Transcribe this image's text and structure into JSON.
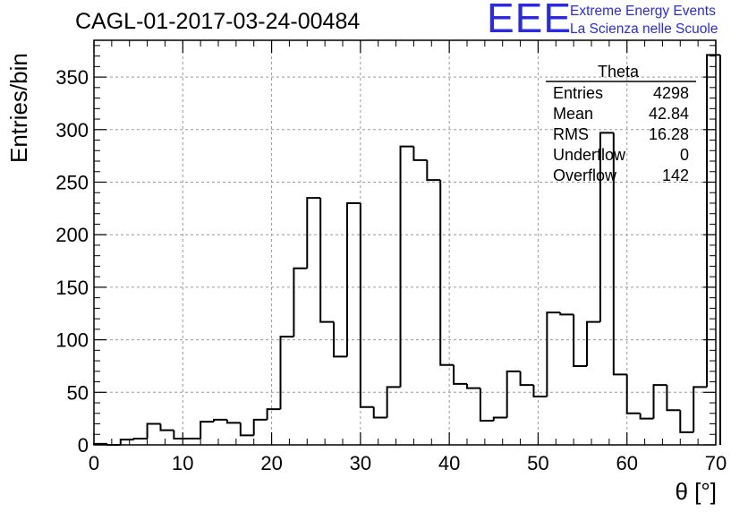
{
  "title": "CAGL-01-2017-03-24-00484",
  "logo": {
    "letters": "EEE",
    "line1": "Extreme Energy Events",
    "line2": "La Scienza nelle Scuole",
    "color": "#2b2bdc"
  },
  "stats": {
    "title": "Theta",
    "rows": [
      {
        "label": "Entries",
        "value": "4298"
      },
      {
        "label": "Mean",
        "value": "42.84"
      },
      {
        "label": "RMS",
        "value": "16.28"
      },
      {
        "label": "Underflow",
        "value": "0"
      },
      {
        "label": "Overflow",
        "value": "142"
      }
    ]
  },
  "chart_data": {
    "type": "bar",
    "style": "step-histogram",
    "xlabel": "θ [°]",
    "ylabel": "Entries/bin",
    "xlim": [
      0,
      70
    ],
    "ylim": [
      0,
      385
    ],
    "bin_width": 1.5,
    "x_ticks": [
      0,
      10,
      20,
      30,
      40,
      50,
      60,
      70
    ],
    "y_ticks": [
      0,
      50,
      100,
      150,
      200,
      250,
      300,
      350
    ],
    "grid": true,
    "line_color": "#000000",
    "values": [
      1,
      0,
      5,
      6,
      20,
      14,
      6,
      6,
      22,
      24,
      21,
      9,
      24,
      34,
      103,
      168,
      235,
      117,
      84,
      230,
      36,
      26,
      55,
      284,
      271,
      252,
      76,
      58,
      54,
      23,
      26,
      70,
      57,
      46,
      126,
      124,
      75,
      117,
      297,
      67,
      30,
      25,
      57,
      33,
      12,
      55,
      371
    ]
  }
}
